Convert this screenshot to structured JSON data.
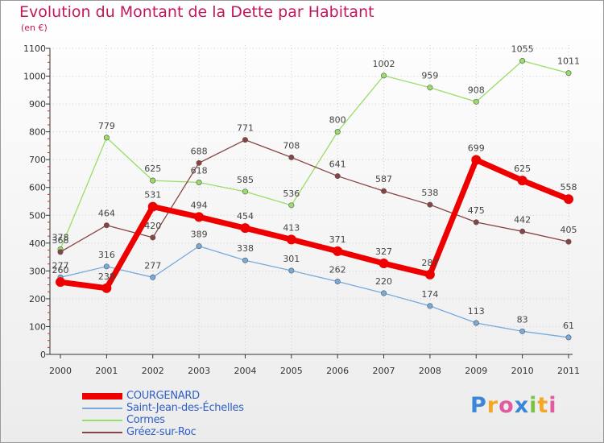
{
  "header": {
    "title": "Evolution du Montant de la Dette par Habitant",
    "unit": "(en €)"
  },
  "chart_data": {
    "type": "line",
    "title": "Evolution du Montant de la Dette par Habitant",
    "subtitle": "(en €)",
    "xlabel": "",
    "ylabel": "",
    "x": [
      "2000",
      "2001",
      "2002",
      "2003",
      "2004",
      "2005",
      "2006",
      "2007",
      "2008",
      "2009",
      "2010",
      "2011"
    ],
    "ylim": [
      0,
      1100
    ],
    "yticks": [
      0,
      100,
      200,
      300,
      400,
      500,
      600,
      700,
      800,
      900,
      1000,
      1100
    ],
    "grid": true,
    "legend_position": "bottom-left",
    "series": [
      {
        "name": "Cormes",
        "color": "#99dd66",
        "width": 1.3,
        "values": [
          378,
          779,
          625,
          618,
          585,
          536,
          800,
          1002,
          959,
          908,
          1055,
          1011
        ]
      },
      {
        "name": "Gréez-sur-Roc",
        "color": "#884444",
        "width": 1.3,
        "values": [
          368,
          464,
          420,
          688,
          771,
          708,
          641,
          587,
          538,
          475,
          442,
          405
        ]
      },
      {
        "name": "Saint-Jean-des-Échelles",
        "color": "#77aadd",
        "width": 1.3,
        "values": [
          277,
          316,
          277,
          389,
          338,
          301,
          262,
          220,
          174,
          113,
          83,
          61
        ]
      },
      {
        "name": "COURGENARD",
        "color": "#ee0000",
        "width": 7,
        "values": [
          260,
          238,
          531,
          494,
          454,
          413,
          371,
          327,
          287,
          699,
          625,
          558
        ]
      }
    ]
  },
  "legend": {
    "items": [
      {
        "label": "COURGENARD",
        "color": "#ee0000"
      },
      {
        "label": "Saint-Jean-des-Échelles",
        "color": "#77aadd"
      },
      {
        "label": "Cormes",
        "color": "#99dd66"
      },
      {
        "label": "Gréez-sur-Roc",
        "color": "#884444"
      }
    ]
  },
  "logo": {
    "text": "Proxiti"
  }
}
